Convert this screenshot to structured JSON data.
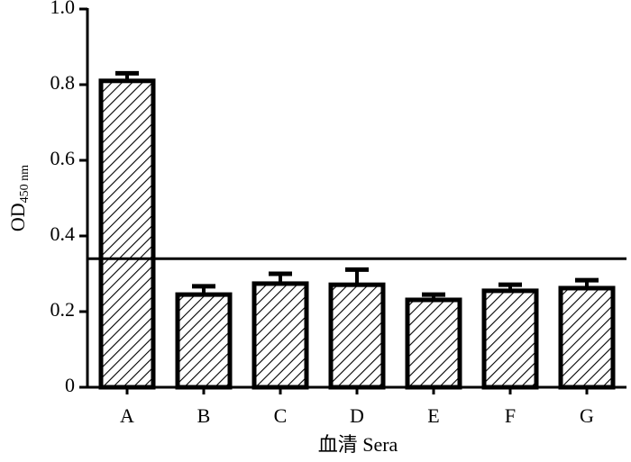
{
  "chart_data": {
    "type": "bar",
    "y_label": "OD",
    "y_label_sub": "450 nm",
    "x_label": "血清 Sera",
    "categories": [
      "A",
      "B",
      "C",
      "D",
      "E",
      "F",
      "G"
    ],
    "values": [
      0.81,
      0.245,
      0.274,
      0.271,
      0.231,
      0.255,
      0.262
    ],
    "errors": [
      0.02,
      0.022,
      0.026,
      0.04,
      0.014,
      0.016,
      0.021
    ],
    "cutoff": 0.34,
    "color": "#000000",
    "ylim": [
      0,
      1
    ],
    "yticks": [
      0,
      0.2,
      0.4,
      0.6,
      0.8,
      {
        "value": 1,
        "label": "1.0"
      }
    ]
  }
}
